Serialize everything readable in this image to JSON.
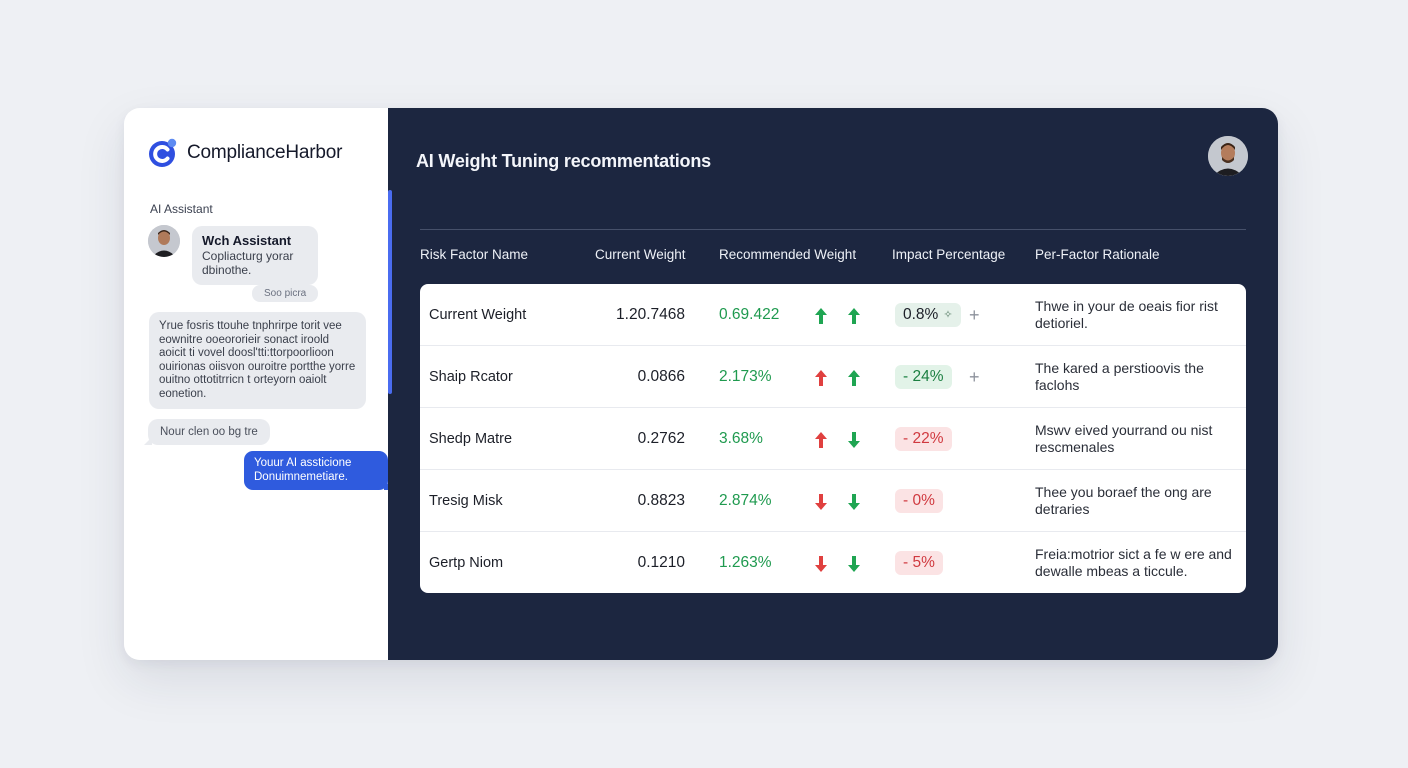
{
  "app": {
    "brand_name": "ComplianceHarbor",
    "accent_color": "#2f5bde",
    "positive_color": "#1f9a4f",
    "negative_color": "#d0393f",
    "panel_color": "#1c2640"
  },
  "sidebar": {
    "section_label": "AI Assistant",
    "messages": [
      {
        "sender": "Wch Assistant",
        "text": "Copliacturg yorar dbinothe.",
        "avatar_icon": "user-avatar"
      },
      {
        "text": "Soo picra"
      },
      {
        "text": "Yrue fosris ttouhe tnphrirpe torit vee eownitre ooeororieir sonact iroold aoicit ti vovel doosl'tti:ttorpoorlioon ouirionas oiisvon ouroitre portthe yorre ouitno ottotitrricn t orteyorn oaiolt eonetion."
      },
      {
        "text": "Nour clen oo bg tre"
      },
      {
        "text": "Youur AI assticione Donuimnemetiare.",
        "from_user": true
      }
    ]
  },
  "main": {
    "title": "AI Weight Tuning recommentations",
    "user_avatar_icon": "user-avatar",
    "columns": [
      "Risk Factor Name",
      "Current Weight",
      "Recommended Weight",
      "Impact Percentage",
      "Per-Factor Rationale"
    ],
    "rows": [
      {
        "name": "Current Weight",
        "current": "1.20.7468",
        "recommended": "0.69.422",
        "arrow1": "up",
        "arrow1_color": "green",
        "arrow2": "up",
        "impact": "0.8%",
        "impact_tone": "neutral",
        "impact_icon": "sparkle",
        "show_plus": true,
        "rationale": "Thwe in your de oeais fior rist detioriel."
      },
      {
        "name": "Shaip Rcator",
        "current": "0.0866",
        "recommended": "2.173%",
        "arrow1": "up",
        "arrow1_color": "red",
        "arrow2": "up",
        "impact": "- 24%",
        "impact_tone": "positive",
        "show_plus": true,
        "rationale": "The kared a perstioovis the faclohs"
      },
      {
        "name": "Shedp Matre",
        "current": "0.2762",
        "recommended": "3.68%",
        "arrow1": "up",
        "arrow1_color": "red",
        "arrow2": "down",
        "impact": "- 22%",
        "impact_tone": "negative",
        "show_plus": false,
        "rationale": "Mswv eived yourrand ou nist rescmenales"
      },
      {
        "name": "Tresig Misk",
        "current": "0.8823",
        "recommended": "2.874%",
        "arrow1": "down",
        "arrow1_color": "red",
        "arrow2": "down",
        "impact": "-  0%",
        "impact_tone": "negative",
        "show_plus": false,
        "rationale": "Thee you boraef the ong are detraries"
      },
      {
        "name": "Gertp Niom",
        "current": "0.1210",
        "recommended": "1.263%",
        "arrow1": "down",
        "arrow1_color": "red",
        "arrow2": "down",
        "impact": "-  5%",
        "impact_tone": "negative",
        "show_plus": false,
        "rationale": "Freia:motrior sict a fe w ere and dewalle mbeas a ticcule."
      }
    ]
  }
}
